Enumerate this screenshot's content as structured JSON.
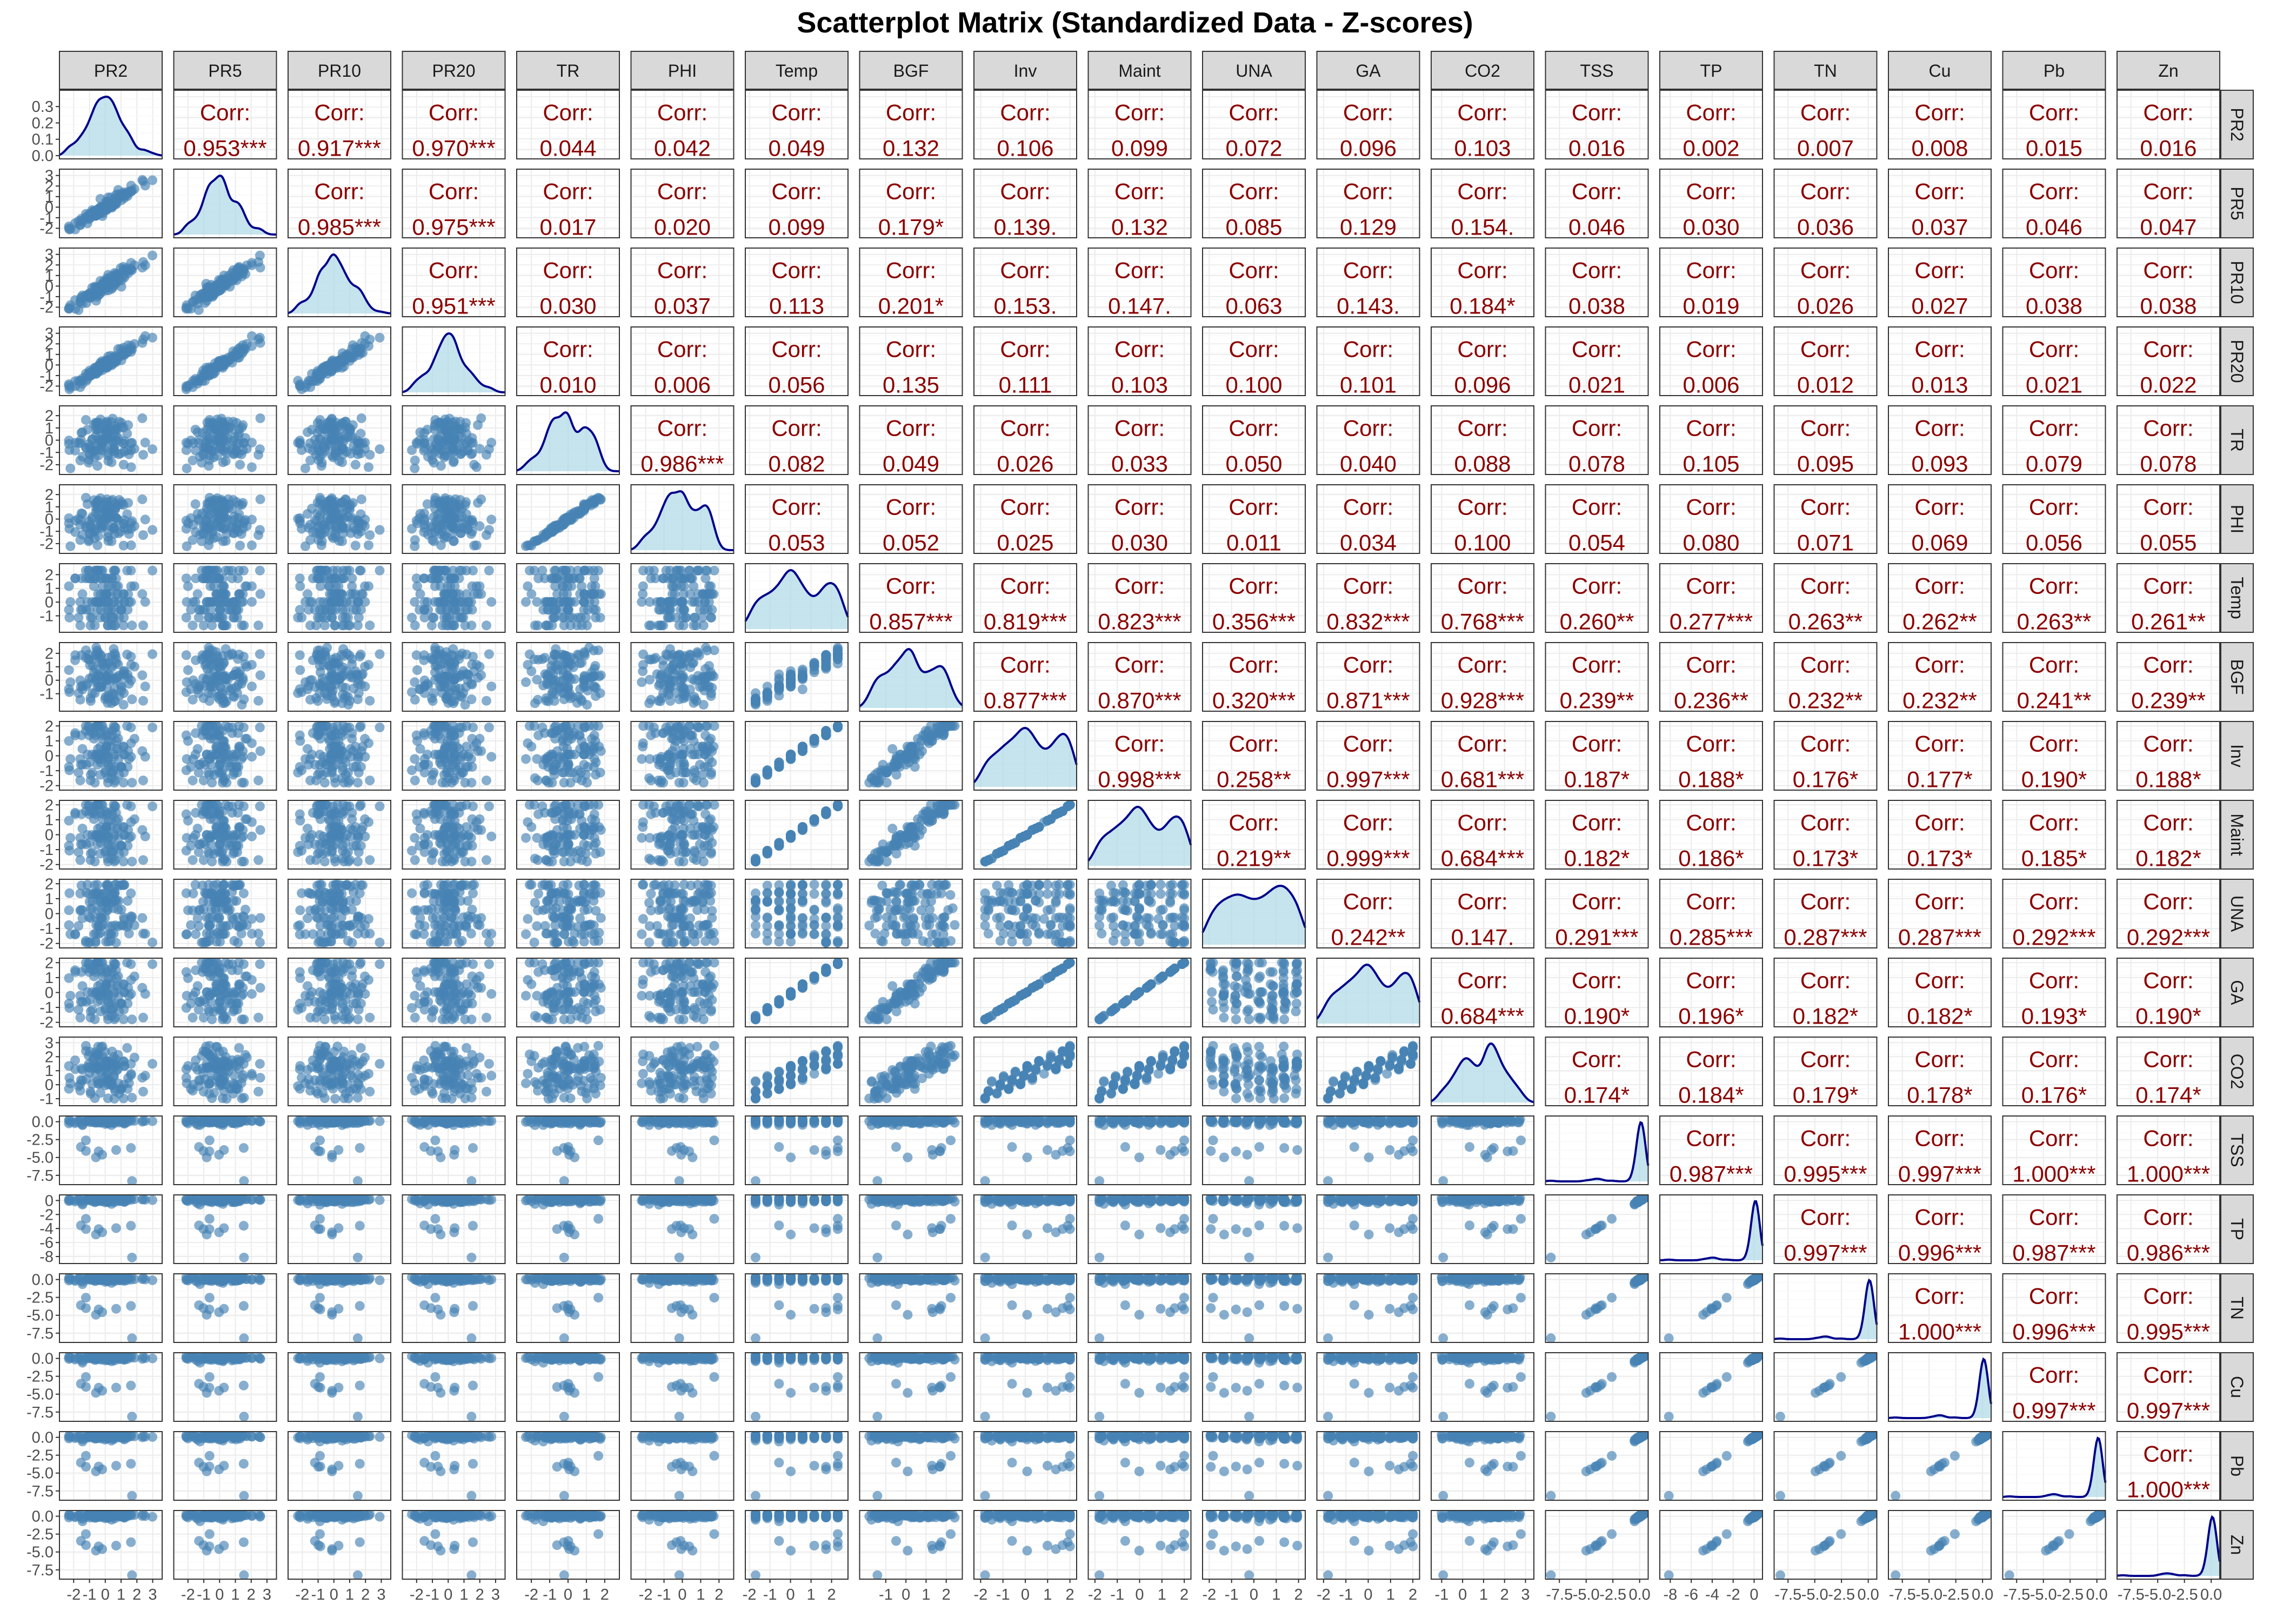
{
  "chart_data": {
    "type": "scatter",
    "title": "Scatterplot Matrix (Standardized Data - Z-scores)",
    "variables": [
      "PR2",
      "PR5",
      "PR10",
      "PR20",
      "TR",
      "PHI",
      "Temp",
      "BGF",
      "Inv",
      "Maint",
      "UNA",
      "GA",
      "CO2",
      "TSS",
      "TP",
      "TN",
      "Cu",
      "Pb",
      "Zn"
    ],
    "upper_panel_label": "Corr:",
    "correlations": [
      [
        "PR2",
        "PR5",
        "0.953***"
      ],
      [
        "PR2",
        "PR10",
        "0.917***"
      ],
      [
        "PR2",
        "PR20",
        "0.970***"
      ],
      [
        "PR2",
        "TR",
        "0.044"
      ],
      [
        "PR2",
        "PHI",
        "0.042"
      ],
      [
        "PR2",
        "Temp",
        "0.049"
      ],
      [
        "PR2",
        "BGF",
        "0.132"
      ],
      [
        "PR2",
        "Inv",
        "0.106"
      ],
      [
        "PR2",
        "Maint",
        "0.099"
      ],
      [
        "PR2",
        "UNA",
        "0.072"
      ],
      [
        "PR2",
        "GA",
        "0.096"
      ],
      [
        "PR2",
        "CO2",
        "0.103"
      ],
      [
        "PR2",
        "TSS",
        "0.016"
      ],
      [
        "PR2",
        "TP",
        "0.002"
      ],
      [
        "PR2",
        "TN",
        "0.007"
      ],
      [
        "PR2",
        "Cu",
        "0.008"
      ],
      [
        "PR2",
        "Pb",
        "0.015"
      ],
      [
        "PR2",
        "Zn",
        "0.016"
      ],
      [
        "PR5",
        "PR10",
        "0.985***"
      ],
      [
        "PR5",
        "PR20",
        "0.975***"
      ],
      [
        "PR5",
        "TR",
        "0.017"
      ],
      [
        "PR5",
        "PHI",
        "0.020"
      ],
      [
        "PR5",
        "Temp",
        "0.099"
      ],
      [
        "PR5",
        "BGF",
        "0.179*"
      ],
      [
        "PR5",
        "Inv",
        "0.139."
      ],
      [
        "PR5",
        "Maint",
        "0.132"
      ],
      [
        "PR5",
        "UNA",
        "0.085"
      ],
      [
        "PR5",
        "GA",
        "0.129"
      ],
      [
        "PR5",
        "CO2",
        "0.154."
      ],
      [
        "PR5",
        "TSS",
        "0.046"
      ],
      [
        "PR5",
        "TP",
        "0.030"
      ],
      [
        "PR5",
        "TN",
        "0.036"
      ],
      [
        "PR5",
        "Cu",
        "0.037"
      ],
      [
        "PR5",
        "Pb",
        "0.046"
      ],
      [
        "PR5",
        "Zn",
        "0.047"
      ],
      [
        "PR10",
        "PR20",
        "0.951***"
      ],
      [
        "PR10",
        "TR",
        "0.030"
      ],
      [
        "PR10",
        "PHI",
        "0.037"
      ],
      [
        "PR10",
        "Temp",
        "0.113"
      ],
      [
        "PR10",
        "BGF",
        "0.201*"
      ],
      [
        "PR10",
        "Inv",
        "0.153."
      ],
      [
        "PR10",
        "Maint",
        "0.147."
      ],
      [
        "PR10",
        "UNA",
        "0.063"
      ],
      [
        "PR10",
        "GA",
        "0.143."
      ],
      [
        "PR10",
        "CO2",
        "0.184*"
      ],
      [
        "PR10",
        "TSS",
        "0.038"
      ],
      [
        "PR10",
        "TP",
        "0.019"
      ],
      [
        "PR10",
        "TN",
        "0.026"
      ],
      [
        "PR10",
        "Cu",
        "0.027"
      ],
      [
        "PR10",
        "Pb",
        "0.038"
      ],
      [
        "PR10",
        "Zn",
        "0.038"
      ],
      [
        "PR20",
        "TR",
        "0.010"
      ],
      [
        "PR20",
        "PHI",
        "0.006"
      ],
      [
        "PR20",
        "Temp",
        "0.056"
      ],
      [
        "PR20",
        "BGF",
        "0.135"
      ],
      [
        "PR20",
        "Inv",
        "0.111"
      ],
      [
        "PR20",
        "Maint",
        "0.103"
      ],
      [
        "PR20",
        "UNA",
        "0.100"
      ],
      [
        "PR20",
        "GA",
        "0.101"
      ],
      [
        "PR20",
        "CO2",
        "0.096"
      ],
      [
        "PR20",
        "TSS",
        "0.021"
      ],
      [
        "PR20",
        "TP",
        "0.006"
      ],
      [
        "PR20",
        "TN",
        "0.012"
      ],
      [
        "PR20",
        "Cu",
        "0.013"
      ],
      [
        "PR20",
        "Pb",
        "0.021"
      ],
      [
        "PR20",
        "Zn",
        "0.022"
      ],
      [
        "TR",
        "PHI",
        "0.986***"
      ],
      [
        "TR",
        "Temp",
        "0.082"
      ],
      [
        "TR",
        "BGF",
        "0.049"
      ],
      [
        "TR",
        "Inv",
        "0.026"
      ],
      [
        "TR",
        "Maint",
        "0.033"
      ],
      [
        "TR",
        "UNA",
        "0.050"
      ],
      [
        "TR",
        "GA",
        "0.040"
      ],
      [
        "TR",
        "CO2",
        "0.088"
      ],
      [
        "TR",
        "TSS",
        "0.078"
      ],
      [
        "TR",
        "TP",
        "0.105"
      ],
      [
        "TR",
        "TN",
        "0.095"
      ],
      [
        "TR",
        "Cu",
        "0.093"
      ],
      [
        "TR",
        "Pb",
        "0.079"
      ],
      [
        "TR",
        "Zn",
        "0.078"
      ],
      [
        "PHI",
        "Temp",
        "0.053"
      ],
      [
        "PHI",
        "BGF",
        "0.052"
      ],
      [
        "PHI",
        "Inv",
        "0.025"
      ],
      [
        "PHI",
        "Maint",
        "0.030"
      ],
      [
        "PHI",
        "UNA",
        "0.011"
      ],
      [
        "PHI",
        "GA",
        "0.034"
      ],
      [
        "PHI",
        "CO2",
        "0.100"
      ],
      [
        "PHI",
        "TSS",
        "0.054"
      ],
      [
        "PHI",
        "TP",
        "0.080"
      ],
      [
        "PHI",
        "TN",
        "0.071"
      ],
      [
        "PHI",
        "Cu",
        "0.069"
      ],
      [
        "PHI",
        "Pb",
        "0.056"
      ],
      [
        "PHI",
        "Zn",
        "0.055"
      ],
      [
        "Temp",
        "BGF",
        "0.857***"
      ],
      [
        "Temp",
        "Inv",
        "0.819***"
      ],
      [
        "Temp",
        "Maint",
        "0.823***"
      ],
      [
        "Temp",
        "UNA",
        "0.356***"
      ],
      [
        "Temp",
        "GA",
        "0.832***"
      ],
      [
        "Temp",
        "CO2",
        "0.768***"
      ],
      [
        "Temp",
        "TSS",
        "0.260**"
      ],
      [
        "Temp",
        "TP",
        "0.277***"
      ],
      [
        "Temp",
        "TN",
        "0.263**"
      ],
      [
        "Temp",
        "Cu",
        "0.262**"
      ],
      [
        "Temp",
        "Pb",
        "0.263**"
      ],
      [
        "Temp",
        "Zn",
        "0.261**"
      ],
      [
        "BGF",
        "Inv",
        "0.877***"
      ],
      [
        "BGF",
        "Maint",
        "0.870***"
      ],
      [
        "BGF",
        "UNA",
        "0.320***"
      ],
      [
        "BGF",
        "GA",
        "0.871***"
      ],
      [
        "BGF",
        "CO2",
        "0.928***"
      ],
      [
        "BGF",
        "TSS",
        "0.239**"
      ],
      [
        "BGF",
        "TP",
        "0.236**"
      ],
      [
        "BGF",
        "TN",
        "0.232**"
      ],
      [
        "BGF",
        "Cu",
        "0.232**"
      ],
      [
        "BGF",
        "Pb",
        "0.241**"
      ],
      [
        "BGF",
        "Zn",
        "0.239**"
      ],
      [
        "Inv",
        "Maint",
        "0.998***"
      ],
      [
        "Inv",
        "UNA",
        "0.258**"
      ],
      [
        "Inv",
        "GA",
        "0.997***"
      ],
      [
        "Inv",
        "CO2",
        "0.681***"
      ],
      [
        "Inv",
        "TSS",
        "0.187*"
      ],
      [
        "Inv",
        "TP",
        "0.188*"
      ],
      [
        "Inv",
        "TN",
        "0.176*"
      ],
      [
        "Inv",
        "Cu",
        "0.177*"
      ],
      [
        "Inv",
        "Pb",
        "0.190*"
      ],
      [
        "Inv",
        "Zn",
        "0.188*"
      ],
      [
        "Maint",
        "UNA",
        "0.219**"
      ],
      [
        "Maint",
        "GA",
        "0.999***"
      ],
      [
        "Maint",
        "CO2",
        "0.684***"
      ],
      [
        "Maint",
        "TSS",
        "0.182*"
      ],
      [
        "Maint",
        "TP",
        "0.186*"
      ],
      [
        "Maint",
        "TN",
        "0.173*"
      ],
      [
        "Maint",
        "Cu",
        "0.173*"
      ],
      [
        "Maint",
        "Pb",
        "0.185*"
      ],
      [
        "Maint",
        "Zn",
        "0.182*"
      ],
      [
        "UNA",
        "GA",
        "0.242**"
      ],
      [
        "UNA",
        "CO2",
        "0.147."
      ],
      [
        "UNA",
        "TSS",
        "0.291***"
      ],
      [
        "UNA",
        "TP",
        "0.285***"
      ],
      [
        "UNA",
        "TN",
        "0.287***"
      ],
      [
        "UNA",
        "Cu",
        "0.287***"
      ],
      [
        "UNA",
        "Pb",
        "0.292***"
      ],
      [
        "UNA",
        "Zn",
        "0.292***"
      ],
      [
        "GA",
        "CO2",
        "0.684***"
      ],
      [
        "GA",
        "TSS",
        "0.190*"
      ],
      [
        "GA",
        "TP",
        "0.196*"
      ],
      [
        "GA",
        "TN",
        "0.182*"
      ],
      [
        "GA",
        "Cu",
        "0.182*"
      ],
      [
        "GA",
        "Pb",
        "0.193*"
      ],
      [
        "GA",
        "Zn",
        "0.190*"
      ],
      [
        "CO2",
        "TSS",
        "0.174*"
      ],
      [
        "CO2",
        "TP",
        "0.184*"
      ],
      [
        "CO2",
        "TN",
        "0.179*"
      ],
      [
        "CO2",
        "Cu",
        "0.178*"
      ],
      [
        "CO2",
        "Pb",
        "0.176*"
      ],
      [
        "CO2",
        "Zn",
        "0.174*"
      ],
      [
        "TSS",
        "TP",
        "0.987***"
      ],
      [
        "TSS",
        "TN",
        "0.995***"
      ],
      [
        "TSS",
        "Cu",
        "0.997***"
      ],
      [
        "TSS",
        "Pb",
        "1.000***"
      ],
      [
        "TSS",
        "Zn",
        "1.000***"
      ],
      [
        "TP",
        "TN",
        "0.997***"
      ],
      [
        "TP",
        "Cu",
        "0.996***"
      ],
      [
        "TP",
        "Pb",
        "0.987***"
      ],
      [
        "TP",
        "Zn",
        "0.986***"
      ],
      [
        "TN",
        "Cu",
        "1.000***"
      ],
      [
        "TN",
        "Pb",
        "0.996***"
      ],
      [
        "TN",
        "Zn",
        "0.995***"
      ],
      [
        "Cu",
        "Pb",
        "0.997***"
      ],
      [
        "Cu",
        "Zn",
        "0.997***"
      ],
      [
        "Pb",
        "Zn",
        "1.000***"
      ]
    ],
    "axes": {
      "PR2": {
        "range": [
          -2.9,
          3.6
        ],
        "x_ticks": [
          "-2",
          "-1",
          "0",
          "1",
          "2",
          "3"
        ],
        "y_ticks": [
          "-2",
          "-1",
          "0",
          "1",
          "2",
          "3"
        ]
      },
      "PR5": {
        "range": [
          -2.9,
          3.6
        ],
        "x_ticks": [
          "-2",
          "-1",
          "0",
          "1",
          "2",
          "3"
        ],
        "y_ticks": [
          "-2",
          "-1",
          "0",
          "1",
          "2",
          "3"
        ]
      },
      "PR10": {
        "range": [
          -2.9,
          3.6
        ],
        "x_ticks": [
          "-2",
          "-1",
          "0",
          "1",
          "2",
          "3"
        ],
        "y_ticks": [
          "-2",
          "-1",
          "0",
          "1",
          "2",
          "3"
        ]
      },
      "PR20": {
        "range": [
          -2.9,
          3.6
        ],
        "x_ticks": [
          "-2",
          "-1",
          "0",
          "1",
          "2",
          "3"
        ],
        "y_ticks": [
          "-2",
          "-1",
          "0",
          "1",
          "2",
          "3"
        ]
      },
      "TR": {
        "range": [
          -2.8,
          2.8
        ],
        "x_ticks": [
          "-2",
          "-1",
          "0",
          "1",
          "2"
        ],
        "y_ticks": [
          "-2",
          "-1",
          "0",
          "1",
          "2"
        ]
      },
      "PHI": {
        "range": [
          -2.8,
          2.8
        ],
        "x_ticks": [
          "-2",
          "-1",
          "0",
          "1",
          "2"
        ],
        "y_ticks": [
          "-2",
          "-1",
          "0",
          "1",
          "2"
        ]
      },
      "Temp": {
        "range": [
          -2.2,
          2.8
        ],
        "x_ticks": [
          "-2",
          "-1",
          "0",
          "1",
          "2"
        ],
        "y_ticks": [
          "-1",
          "0",
          "1",
          "2"
        ]
      },
      "BGF": {
        "range": [
          -2.3,
          2.8
        ],
        "x_ticks": [
          "-1",
          "0",
          "1",
          "2"
        ],
        "y_ticks": [
          "-1",
          "0",
          "1",
          "2"
        ]
      },
      "Inv": {
        "range": [
          -2.3,
          2.3
        ],
        "x_ticks": [
          "-2",
          "-1",
          "0",
          "1",
          "2"
        ],
        "y_ticks": [
          "-2",
          "-1",
          "0",
          "1",
          "2"
        ]
      },
      "Maint": {
        "range": [
          -2.3,
          2.3
        ],
        "x_ticks": [
          "-2",
          "-1",
          "0",
          "1",
          "2"
        ],
        "y_ticks": [
          "-2",
          "-1",
          "0",
          "1",
          "2"
        ]
      },
      "UNA": {
        "range": [
          -2.3,
          2.3
        ],
        "x_ticks": [
          "-2",
          "-1",
          "0",
          "1",
          "2"
        ],
        "y_ticks": [
          "-2",
          "-1",
          "0",
          "1",
          "2"
        ]
      },
      "GA": {
        "range": [
          -2.3,
          2.3
        ],
        "x_ticks": [
          "-2",
          "-1",
          "0",
          "1",
          "2"
        ],
        "y_ticks": [
          "-2",
          "-1",
          "0",
          "1",
          "2"
        ]
      },
      "CO2": {
        "range": [
          -1.5,
          3.4
        ],
        "x_ticks": [
          "-1",
          "0",
          "1",
          "2",
          "3"
        ],
        "y_ticks": [
          "-1",
          "0",
          "1",
          "2",
          "3"
        ]
      },
      "TSS": {
        "range": [
          -8.8,
          0.8
        ],
        "x_ticks": [
          "-7.5",
          "-5.0",
          "-2.5",
          "0.0"
        ],
        "y_ticks": [
          "-7.5",
          "-5.0",
          "-2.5",
          "0.0"
        ]
      },
      "TP": {
        "range": [
          -9.0,
          0.8
        ],
        "x_ticks": [
          "-8",
          "-6",
          "-4",
          "-2",
          "0"
        ],
        "y_ticks": [
          "-8",
          "-6",
          "-4",
          "-2",
          "0"
        ]
      },
      "TN": {
        "range": [
          -8.8,
          0.8
        ],
        "x_ticks": [
          "-7.5",
          "-5.0",
          "-2.5",
          "0.0"
        ],
        "y_ticks": [
          "-7.5",
          "-5.0",
          "-2.5",
          "0.0"
        ]
      },
      "Cu": {
        "range": [
          -8.8,
          0.8
        ],
        "x_ticks": [
          "-7.5",
          "-5.0",
          "-2.5",
          "0.0"
        ],
        "y_ticks": [
          "-7.5",
          "-5.0",
          "-2.5",
          "0.0"
        ]
      },
      "Pb": {
        "range": [
          -8.8,
          0.8
        ],
        "x_ticks": [
          "-7.5",
          "-5.0",
          "-2.5",
          "0.0"
        ],
        "y_ticks": [
          "-7.5",
          "-5.0",
          "-2.5",
          "0.0"
        ]
      },
      "Zn": {
        "range": [
          -8.8,
          0.8
        ],
        "x_ticks": [
          "-7.5",
          "-5.0",
          "-2.5",
          "0.0"
        ],
        "y_ticks": [
          "-7.5",
          "-5.0",
          "-2.5",
          "0.0"
        ]
      }
    },
    "diagonal": "density",
    "lower": "scatter",
    "upper": "correlation",
    "grid": true,
    "n_points": 120
  },
  "colors": {
    "points": "#4682B4",
    "density_fill": "#ADD8E6",
    "density_line": "#00008B",
    "corr_text": "#8B0000",
    "strip_fill": "#D9D9D9",
    "panel_border": "#333333",
    "grid_major": "#EBEBEB",
    "grid_minor": "#F5F5F5",
    "tick_text": "#4D4D4D",
    "strip_text": "#1A1A1A"
  }
}
